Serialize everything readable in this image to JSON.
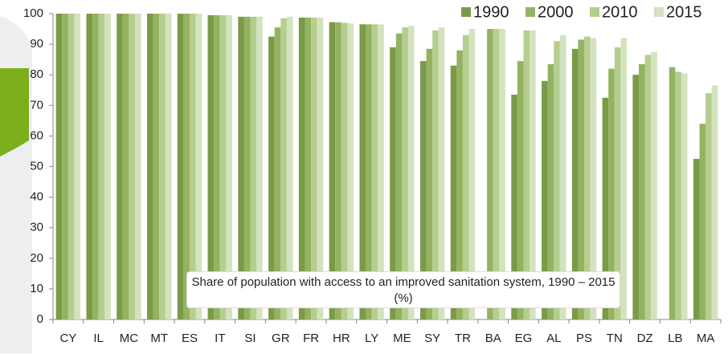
{
  "chart_data": {
    "type": "bar",
    "annotation": "Share of population with access to an improved sanitation system, 1990 – 2015 (%)",
    "categories": [
      "CY",
      "IL",
      "MC",
      "MT",
      "ES",
      "IT",
      "SI",
      "GR",
      "FR",
      "HR",
      "LY",
      "ME",
      "SY",
      "TR",
      "BA",
      "EG",
      "AL",
      "PS",
      "TN",
      "DZ",
      "LB",
      "MA"
    ],
    "series": [
      {
        "name": "1990",
        "color": "#7a9a47",
        "values": [
          100,
          100,
          100,
          100,
          100,
          99.5,
          99,
          92.5,
          98.7,
          97.2,
          96.5,
          89,
          84.5,
          83,
          null,
          73.5,
          78,
          88.5,
          72.5,
          80,
          null,
          52.5
        ]
      },
      {
        "name": "2000",
        "color": "#94b361",
        "values": [
          100,
          100,
          100,
          100,
          100,
          99.5,
          99,
          95.5,
          98.7,
          97.2,
          96.5,
          93.5,
          88.5,
          88,
          95,
          84.5,
          83.5,
          91.5,
          82,
          83.5,
          82.5,
          64
        ]
      },
      {
        "name": "2010",
        "color": "#b6cd90",
        "values": [
          100,
          100,
          100,
          100,
          100,
          99.5,
          99,
          98.5,
          98.7,
          97,
          96.5,
          95.5,
          94.5,
          93,
          95,
          94.5,
          91,
          92.5,
          89,
          86.5,
          81,
          74
        ]
      },
      {
        "name": "2015",
        "color": "#d3e2bf",
        "values": [
          100,
          100,
          100,
          100,
          100,
          99.5,
          99,
          99,
          98.7,
          96.8,
          96.5,
          96,
          95.5,
          95,
          95,
          94.5,
          93,
          92,
          92,
          87.5,
          80.5,
          76.5
        ]
      }
    ],
    "ylim": [
      0,
      100
    ],
    "yticks": [
      0,
      10,
      20,
      30,
      40,
      50,
      60,
      70,
      80,
      90,
      100
    ],
    "legend": "top-right"
  }
}
